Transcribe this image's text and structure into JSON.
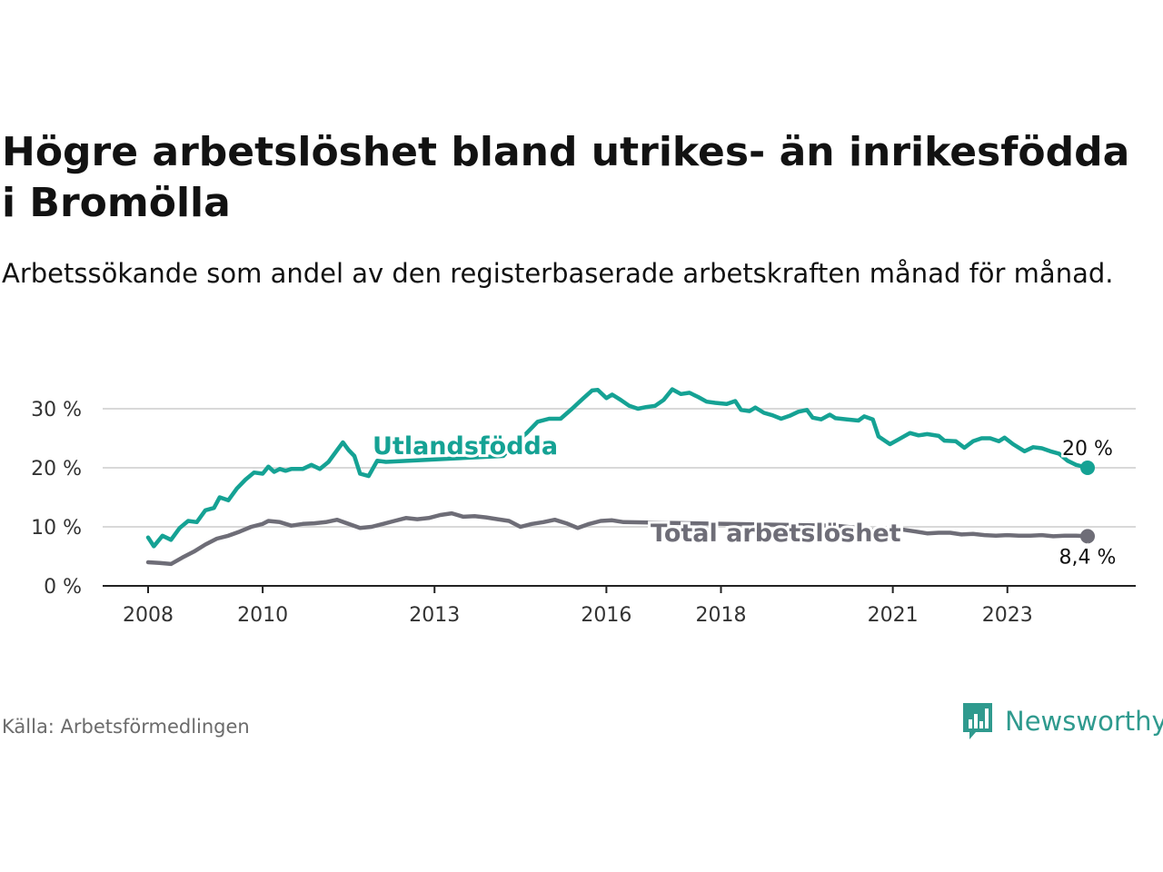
{
  "title": "Högre arbetslöshet bland utrikes- än inrikesfödda i Bromölla",
  "subtitle": "Arbetssökande som andel av den registerbaserade arbetskraften månad för månad.",
  "source": "Källa: Arbetsförmedlingen",
  "brand": {
    "name": "Newsworthy",
    "icon": "newsworthy-logo-icon"
  },
  "colors": {
    "foreign": "#15a294",
    "total": "#6e6d77",
    "grid": "#d9d9d9",
    "axis": "#222222"
  },
  "chart_data": {
    "type": "line",
    "title": "Högre arbetslöshet bland utrikes- än inrikesfödda i Bromölla",
    "ylim": [
      0,
      30
    ],
    "xlim": [
      2008,
      2024.6
    ],
    "y_ticks": [
      0,
      10,
      20,
      30
    ],
    "y_tick_labels": [
      "0 %",
      "10 %",
      "20 %",
      "30 %"
    ],
    "x_ticks": [
      2008,
      2010,
      2013,
      2016,
      2018,
      2021,
      2023
    ],
    "x_tick_labels": [
      "2008",
      "2010",
      "2013",
      "2016",
      "2018",
      "2021",
      "2023"
    ],
    "grid": true,
    "series": [
      {
        "name": "Utlandsfödda",
        "label": "Utlandsfödda",
        "end_label": "20 %",
        "color": "#15a294",
        "points": [
          [
            2008.0,
            8.2
          ],
          [
            2008.1,
            6.7
          ],
          [
            2008.25,
            8.5
          ],
          [
            2008.4,
            7.8
          ],
          [
            2008.55,
            9.8
          ],
          [
            2008.7,
            11.0
          ],
          [
            2008.85,
            10.8
          ],
          [
            2009.0,
            12.8
          ],
          [
            2009.15,
            13.2
          ],
          [
            2009.25,
            15.0
          ],
          [
            2009.4,
            14.5
          ],
          [
            2009.55,
            16.5
          ],
          [
            2009.7,
            18.0
          ],
          [
            2009.85,
            19.2
          ],
          [
            2010.0,
            19.0
          ],
          [
            2010.1,
            20.2
          ],
          [
            2010.2,
            19.3
          ],
          [
            2010.3,
            19.8
          ],
          [
            2010.4,
            19.5
          ],
          [
            2010.5,
            19.8
          ],
          [
            2010.7,
            19.8
          ],
          [
            2010.85,
            20.5
          ],
          [
            2011.0,
            19.8
          ],
          [
            2011.15,
            21.0
          ],
          [
            2011.3,
            23.0
          ],
          [
            2011.4,
            24.3
          ],
          [
            2011.5,
            23.0
          ],
          [
            2011.6,
            22.0
          ],
          [
            2011.7,
            19.0
          ],
          [
            2011.85,
            18.6
          ],
          [
            2012.0,
            21.2
          ],
          [
            2012.15,
            21.0
          ],
          [
            2014.2,
            22.0
          ],
          [
            2014.4,
            24.2
          ],
          [
            2014.6,
            25.8
          ],
          [
            2014.8,
            27.8
          ],
          [
            2015.0,
            28.3
          ],
          [
            2015.2,
            28.3
          ],
          [
            2015.4,
            30.0
          ],
          [
            2015.6,
            31.8
          ],
          [
            2015.75,
            33.1
          ],
          [
            2015.85,
            33.2
          ],
          [
            2016.0,
            31.8
          ],
          [
            2016.1,
            32.4
          ],
          [
            2016.25,
            31.5
          ],
          [
            2016.4,
            30.5
          ],
          [
            2016.55,
            30.0
          ],
          [
            2016.7,
            30.3
          ],
          [
            2016.85,
            30.5
          ],
          [
            2017.0,
            31.5
          ],
          [
            2017.15,
            33.3
          ],
          [
            2017.3,
            32.5
          ],
          [
            2017.45,
            32.7
          ],
          [
            2017.6,
            32.0
          ],
          [
            2017.75,
            31.2
          ],
          [
            2017.9,
            31.0
          ],
          [
            2018.1,
            30.8
          ],
          [
            2018.25,
            31.3
          ],
          [
            2018.35,
            29.8
          ],
          [
            2018.5,
            29.6
          ],
          [
            2018.6,
            30.2
          ],
          [
            2018.75,
            29.3
          ],
          [
            2018.9,
            28.9
          ],
          [
            2019.05,
            28.3
          ],
          [
            2019.2,
            28.8
          ],
          [
            2019.35,
            29.5
          ],
          [
            2019.5,
            29.8
          ],
          [
            2019.6,
            28.5
          ],
          [
            2019.75,
            28.2
          ],
          [
            2019.9,
            29.0
          ],
          [
            2020.0,
            28.4
          ],
          [
            2020.2,
            28.2
          ],
          [
            2020.4,
            28.0
          ],
          [
            2020.5,
            28.7
          ],
          [
            2020.65,
            28.2
          ],
          [
            2020.75,
            25.3
          ],
          [
            2020.95,
            24.0
          ],
          [
            2021.1,
            24.8
          ],
          [
            2021.3,
            25.9
          ],
          [
            2021.45,
            25.5
          ],
          [
            2021.6,
            25.7
          ],
          [
            2021.8,
            25.4
          ],
          [
            2021.9,
            24.6
          ],
          [
            2022.1,
            24.5
          ],
          [
            2022.25,
            23.4
          ],
          [
            2022.4,
            24.5
          ],
          [
            2022.55,
            25.0
          ],
          [
            2022.7,
            25.0
          ],
          [
            2022.85,
            24.5
          ],
          [
            2022.95,
            25.1
          ],
          [
            2023.1,
            24.0
          ],
          [
            2023.3,
            22.8
          ],
          [
            2023.45,
            23.5
          ],
          [
            2023.6,
            23.3
          ],
          [
            2023.75,
            22.8
          ],
          [
            2023.9,
            22.4
          ],
          [
            2024.05,
            21.2
          ],
          [
            2024.2,
            20.5
          ],
          [
            2024.4,
            20.0
          ]
        ]
      },
      {
        "name": "Total arbetslöshet",
        "label": "Total arbetslöshet",
        "end_label": "8,4 %",
        "color": "#6e6d77",
        "points": [
          [
            2008.0,
            4.0
          ],
          [
            2008.2,
            3.9
          ],
          [
            2008.4,
            3.7
          ],
          [
            2008.6,
            4.8
          ],
          [
            2008.8,
            5.8
          ],
          [
            2009.0,
            7.0
          ],
          [
            2009.2,
            8.0
          ],
          [
            2009.4,
            8.5
          ],
          [
            2009.6,
            9.2
          ],
          [
            2009.8,
            10.0
          ],
          [
            2010.0,
            10.5
          ],
          [
            2010.1,
            11.0
          ],
          [
            2010.3,
            10.8
          ],
          [
            2010.5,
            10.2
          ],
          [
            2010.7,
            10.5
          ],
          [
            2010.9,
            10.6
          ],
          [
            2011.1,
            10.8
          ],
          [
            2011.3,
            11.2
          ],
          [
            2011.5,
            10.5
          ],
          [
            2011.7,
            9.8
          ],
          [
            2011.9,
            10.0
          ],
          [
            2012.1,
            10.5
          ],
          [
            2012.3,
            11.0
          ],
          [
            2012.5,
            11.5
          ],
          [
            2012.7,
            11.3
          ],
          [
            2012.9,
            11.5
          ],
          [
            2013.1,
            12.0
          ],
          [
            2013.3,
            12.3
          ],
          [
            2013.5,
            11.7
          ],
          [
            2013.7,
            11.8
          ],
          [
            2013.9,
            11.6
          ],
          [
            2014.1,
            11.3
          ],
          [
            2014.3,
            11.0
          ],
          [
            2014.5,
            10.0
          ],
          [
            2014.7,
            10.5
          ],
          [
            2014.9,
            10.8
          ],
          [
            2015.1,
            11.2
          ],
          [
            2015.3,
            10.6
          ],
          [
            2015.5,
            9.8
          ],
          [
            2015.7,
            10.5
          ],
          [
            2015.9,
            11.0
          ],
          [
            2016.1,
            11.1
          ],
          [
            2016.3,
            10.8
          ],
          [
            2020.0,
            10.2
          ],
          [
            2020.2,
            10.0
          ],
          [
            2020.4,
            9.8
          ],
          [
            2020.6,
            9.5
          ],
          [
            2020.8,
            9.2
          ],
          [
            2021.0,
            9.6
          ],
          [
            2021.2,
            9.5
          ],
          [
            2021.4,
            9.2
          ],
          [
            2021.6,
            8.9
          ],
          [
            2021.8,
            9.0
          ],
          [
            2022.0,
            9.0
          ],
          [
            2022.2,
            8.7
          ],
          [
            2022.4,
            8.8
          ],
          [
            2022.6,
            8.6
          ],
          [
            2022.8,
            8.5
          ],
          [
            2023.0,
            8.6
          ],
          [
            2023.2,
            8.5
          ],
          [
            2023.4,
            8.5
          ],
          [
            2023.6,
            8.6
          ],
          [
            2023.8,
            8.4
          ],
          [
            2024.0,
            8.5
          ],
          [
            2024.2,
            8.5
          ],
          [
            2024.4,
            8.4
          ]
        ]
      }
    ]
  }
}
